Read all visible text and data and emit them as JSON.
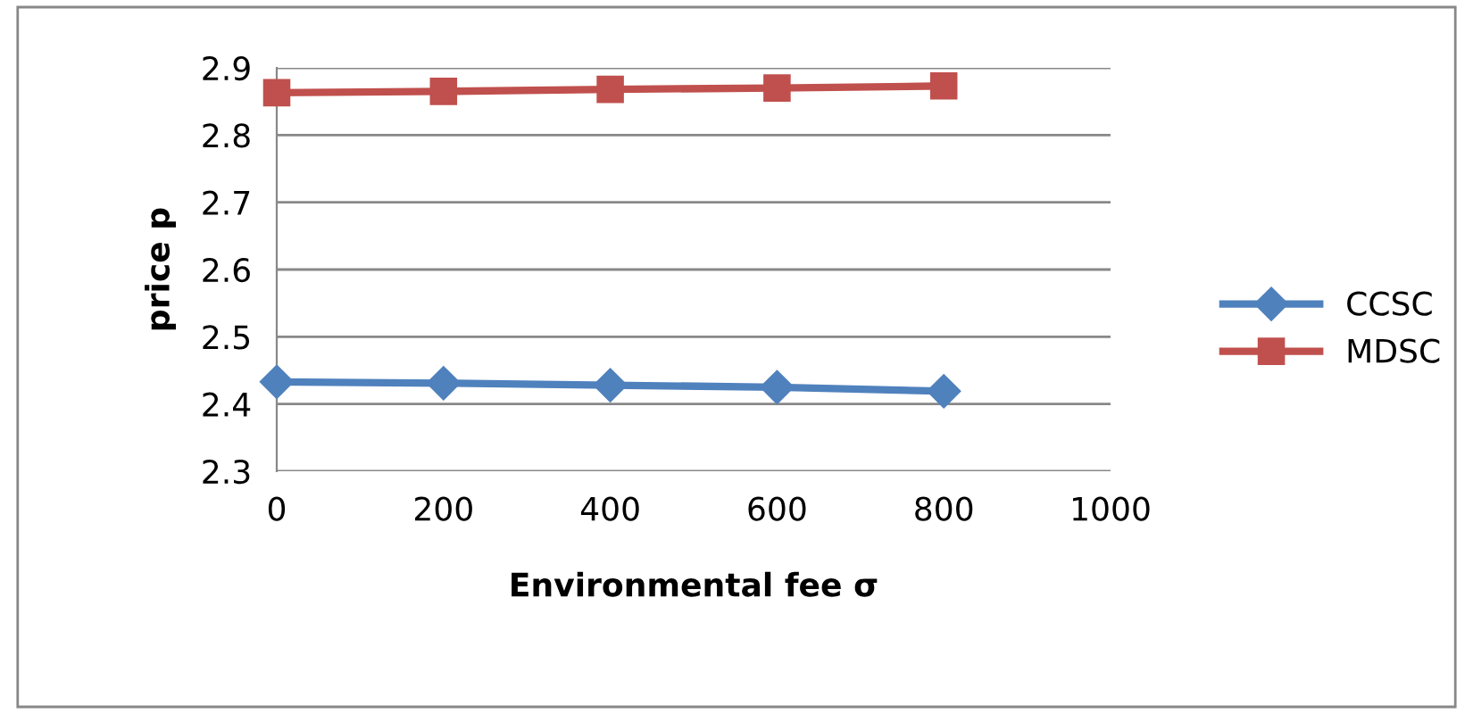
{
  "chart_data": {
    "type": "line",
    "xlabel": "Environmental fee σ",
    "ylabel": "price p",
    "x": [
      0,
      200,
      400,
      600,
      800
    ],
    "series": [
      {
        "name": "CCSC",
        "color": "#4f81bd",
        "marker": "diamond",
        "values": [
          2.433,
          2.431,
          2.428,
          2.425,
          2.419
        ]
      },
      {
        "name": "MDSC",
        "color": "#c0504d",
        "marker": "square",
        "values": [
          2.863,
          2.865,
          2.868,
          2.87,
          2.873
        ]
      }
    ],
    "xlim": [
      0,
      1000
    ],
    "xticks": [
      0,
      200,
      400,
      600,
      800,
      1000
    ],
    "ylim": [
      2.3,
      2.9
    ],
    "yticks": [
      2.3,
      2.4,
      2.5,
      2.6,
      2.7,
      2.8,
      2.9
    ],
    "grid": "y",
    "legend": "right",
    "line_style": "solid"
  }
}
